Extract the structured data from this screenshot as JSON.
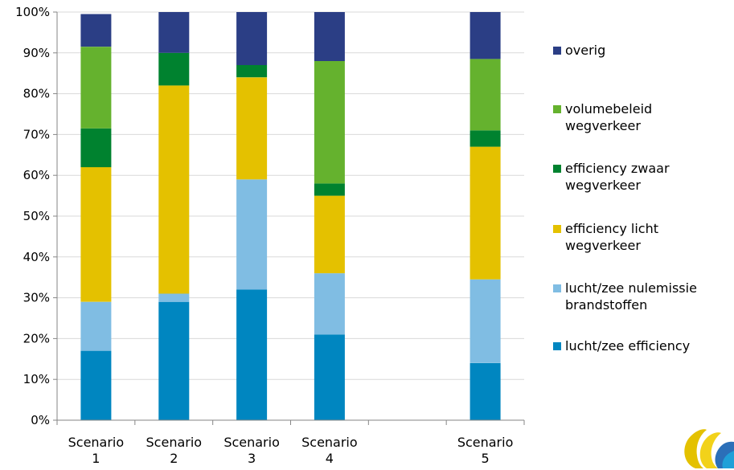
{
  "chart_data": {
    "type": "bar",
    "stacked": true,
    "normalized": true,
    "categories": [
      "Scenario\n1",
      "Scenario\n2",
      "Scenario\n3",
      "Scenario\n4",
      "",
      "Scenario\n5"
    ],
    "ylim": [
      0,
      100
    ],
    "yticks": [
      "0%",
      "10%",
      "20%",
      "30%",
      "40%",
      "50%",
      "60%",
      "70%",
      "80%",
      "90%",
      "100%"
    ],
    "grid": true,
    "legend_position": "right",
    "series": [
      {
        "name": "lucht/zee efficiency",
        "color": "#0086C0",
        "values": [
          17,
          29,
          32,
          21,
          null,
          14
        ]
      },
      {
        "name": "lucht/zee nulemissie brandstoffen",
        "color": "#80BDE3",
        "values": [
          12,
          2,
          27,
          15,
          null,
          20.5
        ]
      },
      {
        "name": "efficiency licht wegverkeer",
        "color": "#E4C100",
        "values": [
          33,
          51,
          25,
          19,
          null,
          32.5
        ]
      },
      {
        "name": "efficiency zwaar wegverkeer",
        "color": "#00822F",
        "values": [
          9.5,
          8,
          3,
          3,
          null,
          4
        ]
      },
      {
        "name": "volumebeleid wegverkeer",
        "color": "#65B22E",
        "values": [
          20,
          0,
          0,
          30,
          null,
          17.5
        ]
      },
      {
        "name": "overig",
        "color": "#2B3E85",
        "values": [
          8,
          10,
          13,
          12,
          null,
          11.5
        ]
      }
    ],
    "legend": [
      {
        "label": "overig",
        "color": "#2B3E85"
      },
      {
        "label": "volumebeleid\nwegverkeer",
        "color": "#65B22E"
      },
      {
        "label": "efficiency zwaar\nwegverkeer",
        "color": "#00822F"
      },
      {
        "label": "efficiency licht\nwegverkeer",
        "color": "#E4C100"
      },
      {
        "label": "lucht/zee nulemissie\nbrandstoffen",
        "color": "#80BDE3"
      },
      {
        "label": "lucht/zee efficiency",
        "color": "#0086C0"
      }
    ]
  }
}
